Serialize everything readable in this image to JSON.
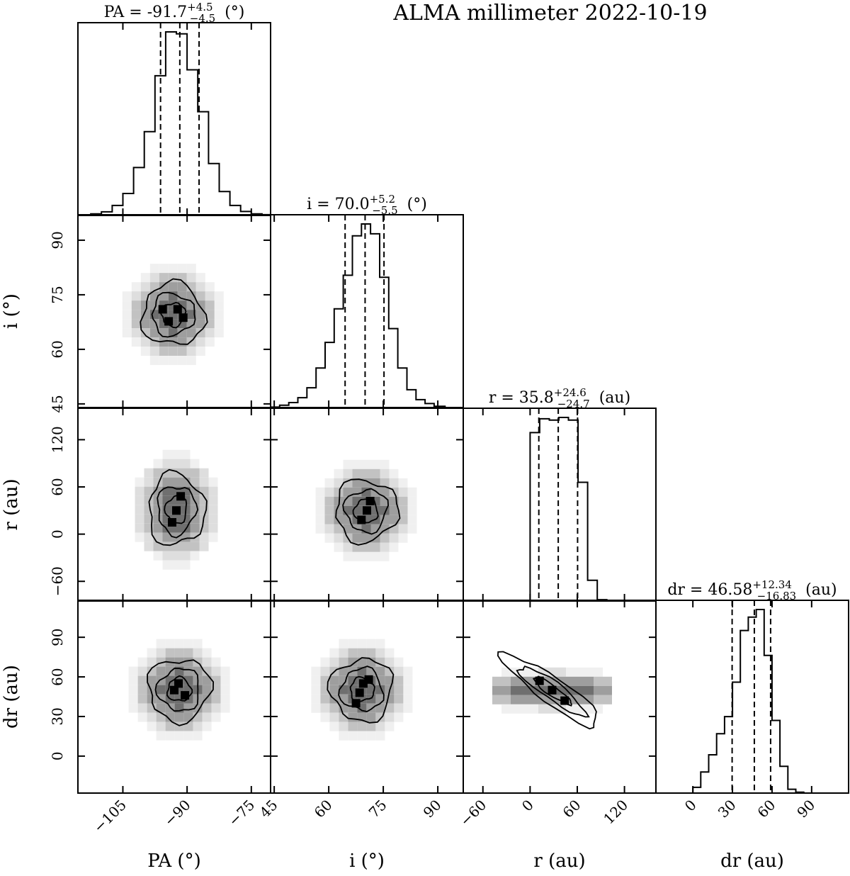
{
  "figure": {
    "title": "ALMA millimeter 2022-10-19"
  },
  "chart_data": [
    {
      "type": "histogram",
      "panel": "PA",
      "title": "PA = -91.7 +4.5 -4.5 (°)",
      "title_parts": {
        "prefix": "PA = -91.7",
        "sup": "+4.5",
        "sub": "−4.5",
        "unit": "(°)"
      },
      "xlabel": "PA (°)",
      "xlim": [
        -115.5,
        -70.5
      ],
      "xticks": [
        -105,
        -90,
        -75
      ],
      "xtick_labels": [
        "−105",
        "−90",
        "−75"
      ],
      "quantiles": [
        -96.2,
        -91.7,
        -87.2
      ],
      "bin_edges": [
        -115,
        -112.5,
        -110,
        -107.5,
        -105,
        -102.5,
        -100,
        -97.5,
        -95,
        -92.5,
        -90,
        -87.5,
        -85,
        -82.5,
        -80,
        -77.5,
        -75,
        -72.5,
        -70.5
      ],
      "counts": [
        0.3,
        0.8,
        1.8,
        5,
        11,
        24,
        42,
        70,
        92,
        91,
        73,
        52,
        26,
        12,
        5,
        2,
        0.8,
        0.4
      ]
    },
    {
      "type": "contour",
      "panel": "PA-i",
      "ylabel": "i (°)",
      "yticks": [
        45,
        60,
        75,
        90
      ],
      "ytick_labels": [
        "45",
        "60",
        "75",
        "90"
      ],
      "ylim": [
        44,
        97
      ],
      "x_range": [
        -115.5,
        -70.5
      ],
      "points": [
        [
          -95.7,
          71.0
        ],
        [
          -92.2,
          71.0
        ],
        [
          -90.9,
          68.7
        ],
        [
          -94.3,
          67.7
        ]
      ]
    },
    {
      "type": "histogram",
      "panel": "i",
      "title": "i = 70.0 +5.2 -5.5 (°)",
      "title_parts": {
        "prefix": "i = 70.0",
        "sup": "+5.2",
        "sub": "−5.5",
        "unit": "(°)"
      },
      "xlabel": "i (°)",
      "xlim": [
        44,
        97
      ],
      "xticks": [
        45,
        60,
        75,
        90
      ],
      "xtick_labels": [
        "45",
        "60",
        "75",
        "90"
      ],
      "quantiles": [
        64.5,
        70.0,
        75.2
      ],
      "bin_edges": [
        44,
        46.5,
        49,
        51.5,
        54,
        56.5,
        59,
        61.5,
        64,
        66.5,
        69,
        71.5,
        74,
        76.5,
        79,
        81.5,
        84,
        86.5,
        89,
        92
      ],
      "counts": [
        0.2,
        1.2,
        2.5,
        5,
        10,
        20,
        33,
        50,
        67,
        87,
        93,
        88,
        66,
        40,
        20,
        9,
        4,
        2,
        0.6
      ]
    },
    {
      "type": "contour",
      "panel": "PA-r",
      "ylabel": "r (au)",
      "yticks": [
        -60,
        0,
        60,
        120
      ],
      "ytick_labels": [
        "−60",
        "0",
        "60",
        "120"
      ],
      "ylim": [
        -85,
        160
      ],
      "x_range": [
        -115.5,
        -70.5
      ],
      "points": [
        [
          -93.5,
          15
        ],
        [
          -91.5,
          48
        ],
        [
          -92.5,
          30
        ]
      ]
    },
    {
      "type": "contour",
      "panel": "i-r",
      "points": [
        [
          71.4,
          42
        ],
        [
          69.0,
          18
        ],
        [
          70.5,
          30
        ]
      ]
    },
    {
      "type": "histogram",
      "panel": "r",
      "title": "r = 35.8 +24.6 -24.7 (au)",
      "title_parts": {
        "prefix": "r = 35.8",
        "sup": "+24.6",
        "sub": "−24.7",
        "unit": "(au)"
      },
      "xlabel": "r (au)",
      "xlim": [
        -85,
        160
      ],
      "xticks": [
        -60,
        0,
        60,
        120
      ],
      "xtick_labels": [
        "−60",
        "0",
        "60",
        "120"
      ],
      "quantiles": [
        11.1,
        35.8,
        60.4
      ],
      "bin_edges": [
        0,
        12.2,
        24.4,
        36.6,
        48.8,
        61,
        73.2,
        85.4,
        97.6
      ],
      "counts": [
        122,
        132,
        131,
        133,
        131,
        86,
        15,
        1
      ]
    },
    {
      "type": "contour",
      "panel": "PA-dr",
      "ylabel": "dr (au)",
      "yticks": [
        0,
        30,
        60,
        90
      ],
      "ytick_labels": [
        "0",
        "30",
        "60",
        "90"
      ],
      "ylim": [
        -28,
        118
      ],
      "x_range": [
        -115.5,
        -70.5
      ],
      "points": [
        [
          -92.0,
          55
        ],
        [
          -90.5,
          46
        ],
        [
          -93.0,
          50
        ]
      ]
    },
    {
      "type": "contour",
      "panel": "i-dr",
      "points": [
        [
          69.5,
          55
        ],
        [
          68.5,
          48
        ],
        [
          71.0,
          58
        ],
        [
          67.5,
          40
        ]
      ]
    },
    {
      "type": "contour",
      "panel": "r-dr",
      "points": [
        [
          12,
          57
        ],
        [
          44,
          42
        ],
        [
          28,
          50
        ]
      ]
    },
    {
      "type": "histogram",
      "panel": "dr",
      "title": "dr = 46.58 +12.34 -16.83 (au)",
      "title_parts": {
        "prefix": "dr = 46.58",
        "sup": "+12.34",
        "sub": "−16.83",
        "unit": "(au)"
      },
      "xlabel": "dr (au)",
      "xlim": [
        -28,
        118
      ],
      "xticks": [
        0,
        30,
        60,
        90
      ],
      "xtick_labels": [
        "0",
        "30",
        "60",
        "90"
      ],
      "quantiles": [
        29.75,
        46.58,
        58.92
      ],
      "bin_edges": [
        0,
        6,
        12,
        18,
        24,
        30,
        36,
        42,
        48,
        54,
        60,
        66,
        72,
        78,
        84
      ],
      "counts": [
        3,
        11,
        20,
        31,
        40,
        58,
        85,
        92,
        96,
        72,
        38,
        14,
        2,
        0.5
      ]
    }
  ]
}
